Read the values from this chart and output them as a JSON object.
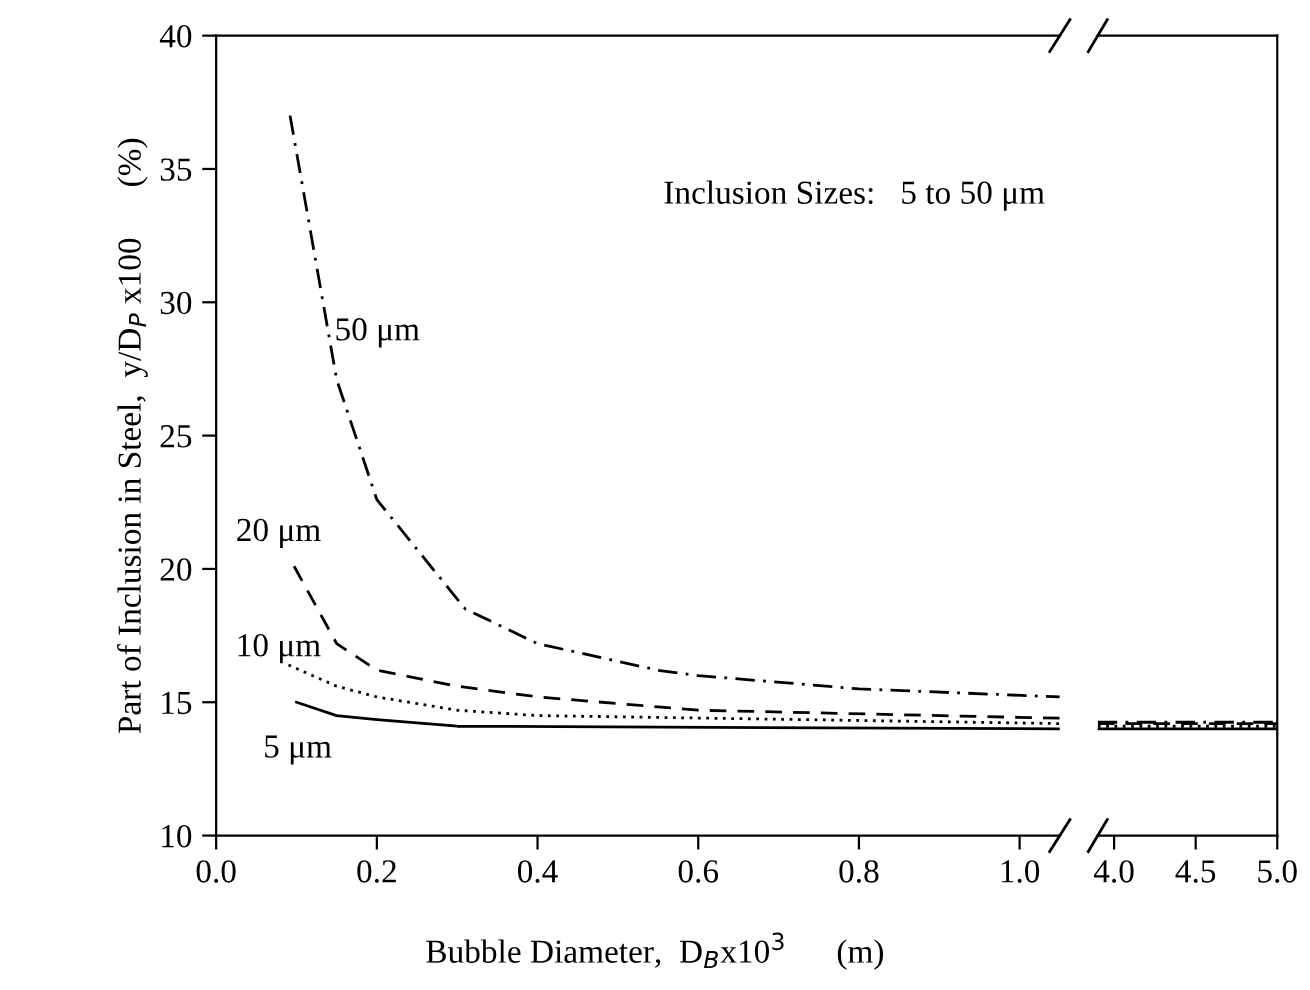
{
  "chart_data": [
    {
      "type": "line",
      "xlabel": "Bubble Diameter,  D$_{B}$x10$^{3}$      (m)",
      "ylabel": "Part of Inclusion in Steel,  y/D$_{P}$ x100      (%)",
      "xlim": [
        0.0,
        1.05
      ],
      "xticks": [
        {
          "value": 0.0,
          "label": "0.0"
        },
        0.2,
        0.4,
        0.6,
        0.8,
        {
          "value": 1.0,
          "label": "1.0"
        }
      ],
      "ylim": [
        10,
        40
      ],
      "yticks": [
        10,
        15,
        20,
        25,
        30,
        35,
        40
      ],
      "grid": false,
      "legend": false,
      "series": [
        {
          "name": "50 μm",
          "color": "#000000",
          "line_style": "dashdot",
          "x": [
            0.092,
            0.15,
            0.2,
            0.31,
            0.4,
            0.55,
            0.6,
            0.8,
            1.05
          ],
          "values": [
            37.0,
            27.1,
            22.6,
            18.5,
            17.2,
            16.2,
            16.0,
            15.5,
            15.2
          ]
        },
        {
          "name": "20 μm",
          "color": "#000000",
          "line_style": "dashed",
          "x": [
            0.097,
            0.15,
            0.2,
            0.3,
            0.4,
            0.6,
            1.05
          ],
          "values": [
            20.1,
            17.2,
            16.2,
            15.6,
            15.2,
            14.7,
            14.4
          ]
        },
        {
          "name": "10 μm",
          "color": "#000000",
          "line_style": "dotted",
          "x": [
            0.09,
            0.15,
            0.2,
            0.3,
            0.4,
            1.05
          ],
          "values": [
            16.4,
            15.6,
            15.2,
            14.7,
            14.5,
            14.2
          ]
        },
        {
          "name": "5 μm",
          "color": "#000000",
          "line_style": "solid",
          "x": [
            0.1,
            0.15,
            0.2,
            0.3,
            1.05
          ],
          "values": [
            15.0,
            14.5,
            14.35,
            14.1,
            14.0
          ]
        }
      ],
      "annotations": [
        "Inclusion Sizes:   5 to 50 μm"
      ]
    },
    {
      "type": "line",
      "xlim": [
        3.9,
        5.0
      ],
      "xticks": [
        {
          "value": 4.0,
          "label": "4.0"
        },
        4.5,
        {
          "value": 5.0,
          "label": "5.0"
        }
      ],
      "ylim": [
        10,
        40
      ],
      "tick_labels": "x",
      "grid": false,
      "legend": false,
      "series": [
        {
          "color": "#000000",
          "line_style": "dashdot",
          "x": [
            3.9,
            5.0
          ],
          "values": [
            14.25,
            14.25
          ]
        },
        {
          "color": "#000000",
          "line_style": "dashed",
          "x": [
            3.9,
            5.0
          ],
          "values": [
            14.2,
            14.2
          ]
        },
        {
          "color": "#000000",
          "line_style": "dotted",
          "x": [
            3.9,
            5.0
          ],
          "values": [
            14.1,
            14.1
          ]
        },
        {
          "color": "#000000",
          "line_style": "solid",
          "x": [
            3.9,
            5.0
          ],
          "values": [
            14.0,
            14.0
          ]
        }
      ]
    }
  ]
}
